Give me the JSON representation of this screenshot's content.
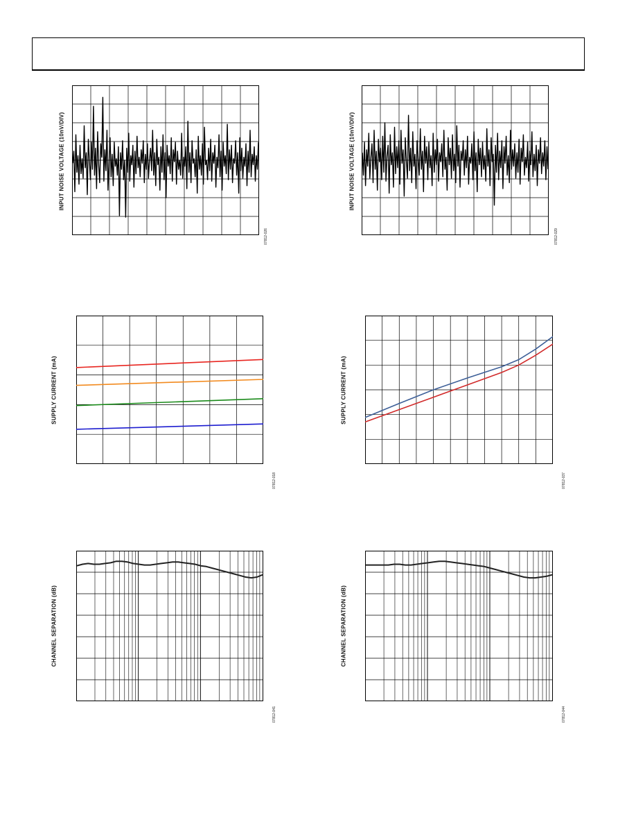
{
  "chart_data": [
    {
      "type": "line",
      "id": "noise-left",
      "ylabel": "INPUT NOISE VOLTAGE (10nV/DIV)",
      "figure_id": "07812-026",
      "grid": "on",
      "x_divisions": 10,
      "y_divisions": 8,
      "series": [
        {
          "values": [
            0.48,
            0.56,
            0.29,
            0.67,
            0.42,
            0.53,
            0.34,
            0.6,
            0.41,
            0.51,
            0.38,
            0.73,
            0.45,
            0.55,
            0.27,
            0.64,
            0.5,
            0.37,
            0.62,
            0.44,
            0.86,
            0.4,
            0.58,
            0.31,
            0.69,
            0.47,
            0.35,
            0.61,
            0.52,
            0.92,
            0.36,
            0.57,
            0.43,
            0.7,
            0.3,
            0.49,
            0.65,
            0.39,
            0.54,
            0.33,
            0.62,
            0.46,
            0.51,
            0.4,
            0.59,
            0.13,
            0.55,
            0.44,
            0.63,
            0.37,
            0.5,
            0.12,
            0.58,
            0.42,
            0.68,
            0.36,
            0.53,
            0.47,
            0.6,
            0.32,
            0.56,
            0.41,
            0.66,
            0.45,
            0.52,
            0.39,
            0.57,
            0.48,
            0.63,
            0.35,
            0.54,
            0.44,
            0.61,
            0.38,
            0.5,
            0.58,
            0.43,
            0.7,
            0.4,
            0.55,
            0.33,
            0.64,
            0.47,
            0.52,
            0.3,
            0.59,
            0.42,
            0.67,
            0.37,
            0.55,
            0.25,
            0.6,
            0.46,
            0.53,
            0.41,
            0.65,
            0.36,
            0.57,
            0.49,
            0.62,
            0.34,
            0.56,
            0.44,
            0.5,
            0.4,
            0.68,
            0.38,
            0.52,
            0.46,
            0.59,
            0.31,
            0.76,
            0.42,
            0.55,
            0.35,
            0.63,
            0.48,
            0.51,
            0.39,
            0.57,
            0.28,
            0.66,
            0.44,
            0.53,
            0.4,
            0.61,
            0.34,
            0.72,
            0.47,
            0.5,
            0.37,
            0.58,
            0.43,
            0.64,
            0.36,
            0.55,
            0.48,
            0.6,
            0.32,
            0.52,
            0.45,
            0.67,
            0.39,
            0.56,
            0.3,
            0.62,
            0.46,
            0.53,
            0.41,
            0.74,
            0.37,
            0.57,
            0.44,
            0.6,
            0.35,
            0.51,
            0.48,
            0.63,
            0.4,
            0.55,
            0.28,
            0.65,
            0.43,
            0.58,
            0.38,
            0.52,
            0.46,
            0.61,
            0.33,
            0.56,
            0.42,
            0.7,
            0.39,
            0.54,
            0.47,
            0.59,
            0.36,
            0.53,
            0.44,
            0.62
          ]
        }
      ]
    },
    {
      "type": "line",
      "id": "noise-right",
      "ylabel": "INPUT NOISE VOLTAGE (10nV/DIV)",
      "figure_id": "07812-029",
      "grid": "on",
      "x_divisions": 10,
      "y_divisions": 8,
      "series": [
        {
          "values": [
            0.55,
            0.4,
            0.62,
            0.33,
            0.57,
            0.46,
            0.68,
            0.38,
            0.52,
            0.61,
            0.35,
            0.7,
            0.44,
            0.56,
            0.3,
            0.64,
            0.49,
            0.58,
            0.37,
            0.66,
            0.42,
            0.75,
            0.36,
            0.53,
            0.6,
            0.28,
            0.67,
            0.47,
            0.55,
            0.32,
            0.72,
            0.41,
            0.59,
            0.45,
            0.63,
            0.34,
            0.7,
            0.48,
            0.57,
            0.26,
            0.65,
            0.5,
            0.38,
            0.8,
            0.43,
            0.58,
            0.35,
            0.69,
            0.46,
            0.54,
            0.31,
            0.63,
            0.51,
            0.4,
            0.71,
            0.44,
            0.56,
            0.29,
            0.66,
            0.48,
            0.59,
            0.37,
            0.62,
            0.45,
            0.53,
            0.33,
            0.68,
            0.42,
            0.57,
            0.47,
            0.64,
            0.36,
            0.55,
            0.49,
            0.61,
            0.39,
            0.7,
            0.44,
            0.52,
            0.3,
            0.65,
            0.47,
            0.58,
            0.38,
            0.67,
            0.43,
            0.54,
            0.35,
            0.73,
            0.46,
            0.6,
            0.32,
            0.56,
            0.5,
            0.63,
            0.4,
            0.57,
            0.45,
            0.66,
            0.34,
            0.52,
            0.48,
            0.61,
            0.37,
            0.69,
            0.43,
            0.55,
            0.29,
            0.64,
            0.47,
            0.58,
            0.39,
            0.62,
            0.44,
            0.53,
            0.36,
            0.71,
            0.46,
            0.57,
            0.33,
            0.65,
            0.49,
            0.54,
            0.2,
            0.6,
            0.42,
            0.68,
            0.37,
            0.56,
            0.45,
            0.63,
            0.31,
            0.59,
            0.48,
            0.66,
            0.4,
            0.53,
            0.35,
            0.7,
            0.44,
            0.57,
            0.46,
            0.61,
            0.38,
            0.55,
            0.42,
            0.64,
            0.34,
            0.58,
            0.49,
            0.67,
            0.4,
            0.52,
            0.45,
            0.62,
            0.36,
            0.56,
            0.47,
            0.69,
            0.39,
            0.54,
            0.43,
            0.6,
            0.33,
            0.57,
            0.48,
            0.65,
            0.41,
            0.55,
            0.46,
            0.63,
            0.37,
            0.59,
            0.44
          ]
        }
      ]
    },
    {
      "type": "line",
      "id": "supply-left",
      "ylabel": "SUPPLY CURRENT (mA)",
      "figure_id": "07812-018",
      "grid": "on",
      "x_divisions": 7,
      "y_divisions": 5,
      "xlim": [
        0,
        7
      ],
      "ylim": [
        0,
        5
      ],
      "series": [
        {
          "color": "#e8251f",
          "x": [
            0,
            7
          ],
          "values": [
            3.25,
            3.52
          ]
        },
        {
          "color": "#f28a1e",
          "x": [
            0,
            7
          ],
          "values": [
            2.65,
            2.85
          ]
        },
        {
          "color": "#1a8a1a",
          "x": [
            0,
            7
          ],
          "values": [
            1.97,
            2.2
          ]
        },
        {
          "color": "#1c1ccf",
          "x": [
            0,
            7
          ],
          "values": [
            1.17,
            1.35
          ]
        }
      ]
    },
    {
      "type": "line",
      "id": "supply-right",
      "ylabel": "SUPPLY CURRENT (mA)",
      "figure_id": "07812-037",
      "grid": "on",
      "x_divisions": 11,
      "y_divisions": 6,
      "xlim": [
        0,
        11
      ],
      "ylim": [
        0,
        6
      ],
      "series": [
        {
          "color": "#3d5f98",
          "x": [
            0,
            2,
            4,
            6,
            8,
            9,
            10,
            11
          ],
          "values": [
            1.88,
            2.45,
            3.0,
            3.48,
            3.93,
            4.22,
            4.65,
            5.15
          ]
        },
        {
          "color": "#d12a2a",
          "x": [
            0,
            2,
            4,
            6,
            8,
            9,
            10,
            11
          ],
          "values": [
            1.7,
            2.2,
            2.7,
            3.2,
            3.7,
            4.0,
            4.4,
            4.85
          ]
        }
      ]
    },
    {
      "type": "line",
      "id": "sep-left",
      "ylabel": "CHANNEL SEPARATION (dB)",
      "figure_id": "07812-041",
      "grid": "on",
      "scale_x": "log",
      "x_decades": 3,
      "y_divisions": 7,
      "series": [
        {
          "color": "#222222",
          "values": [
            0.9,
            0.91,
            0.915,
            0.91,
            0.91,
            0.915,
            0.92,
            0.93,
            0.93,
            0.925,
            0.915,
            0.91,
            0.905,
            0.905,
            0.91,
            0.915,
            0.92,
            0.925,
            0.925,
            0.92,
            0.915,
            0.91,
            0.9,
            0.895,
            0.885,
            0.875,
            0.865,
            0.855,
            0.845,
            0.835,
            0.825,
            0.82,
            0.825,
            0.84
          ]
        }
      ]
    },
    {
      "type": "line",
      "id": "sep-right",
      "ylabel": "CHANNEL SEPARATION (dB)",
      "figure_id": "07812-044",
      "grid": "on",
      "scale_x": "log",
      "x_decades": 3,
      "y_divisions": 7,
      "series": [
        {
          "color": "#222222",
          "values": [
            0.905,
            0.905,
            0.905,
            0.905,
            0.905,
            0.91,
            0.91,
            0.905,
            0.905,
            0.91,
            0.915,
            0.92,
            0.925,
            0.93,
            0.93,
            0.925,
            0.92,
            0.915,
            0.91,
            0.905,
            0.9,
            0.895,
            0.885,
            0.875,
            0.865,
            0.855,
            0.845,
            0.835,
            0.825,
            0.82,
            0.82,
            0.825,
            0.83,
            0.84
          ]
        }
      ]
    }
  ]
}
